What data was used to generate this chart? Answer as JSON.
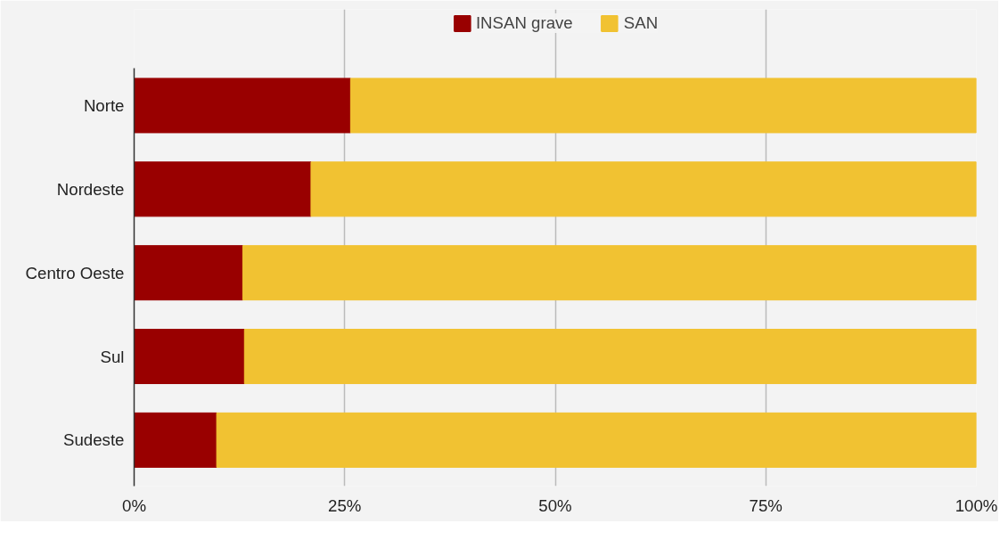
{
  "chart_data": {
    "type": "bar",
    "orientation": "horizontal",
    "stacked": true,
    "categories": [
      "Norte",
      "Nordeste",
      "Centro Oeste",
      "Sul",
      "Sudeste"
    ],
    "series": [
      {
        "name": "INSAN grave",
        "color": "#990000",
        "values": [
          25.7,
          21.0,
          12.9,
          13.1,
          9.8
        ]
      },
      {
        "name": "SAN",
        "color": "#f1c232",
        "values": [
          74.3,
          79.0,
          87.1,
          86.9,
          90.2
        ]
      }
    ],
    "xlim": [
      0,
      100
    ],
    "xticks": [
      {
        "value": 0,
        "label": "0%"
      },
      {
        "value": 25,
        "label": "25%"
      },
      {
        "value": 50,
        "label": "50%"
      },
      {
        "value": 75,
        "label": "75%"
      },
      {
        "value": 100,
        "label": "100%"
      }
    ],
    "grid": "x",
    "legend": "top"
  }
}
